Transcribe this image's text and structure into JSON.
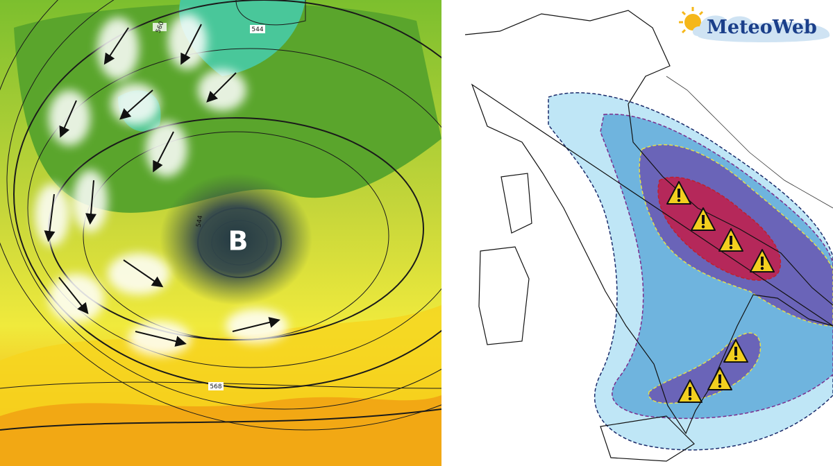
{
  "left_map": {
    "low_label": "B",
    "contour_labels": [
      "560",
      "544",
      "544",
      "568"
    ]
  },
  "logo": {
    "text": "MeteoWeb"
  }
}
